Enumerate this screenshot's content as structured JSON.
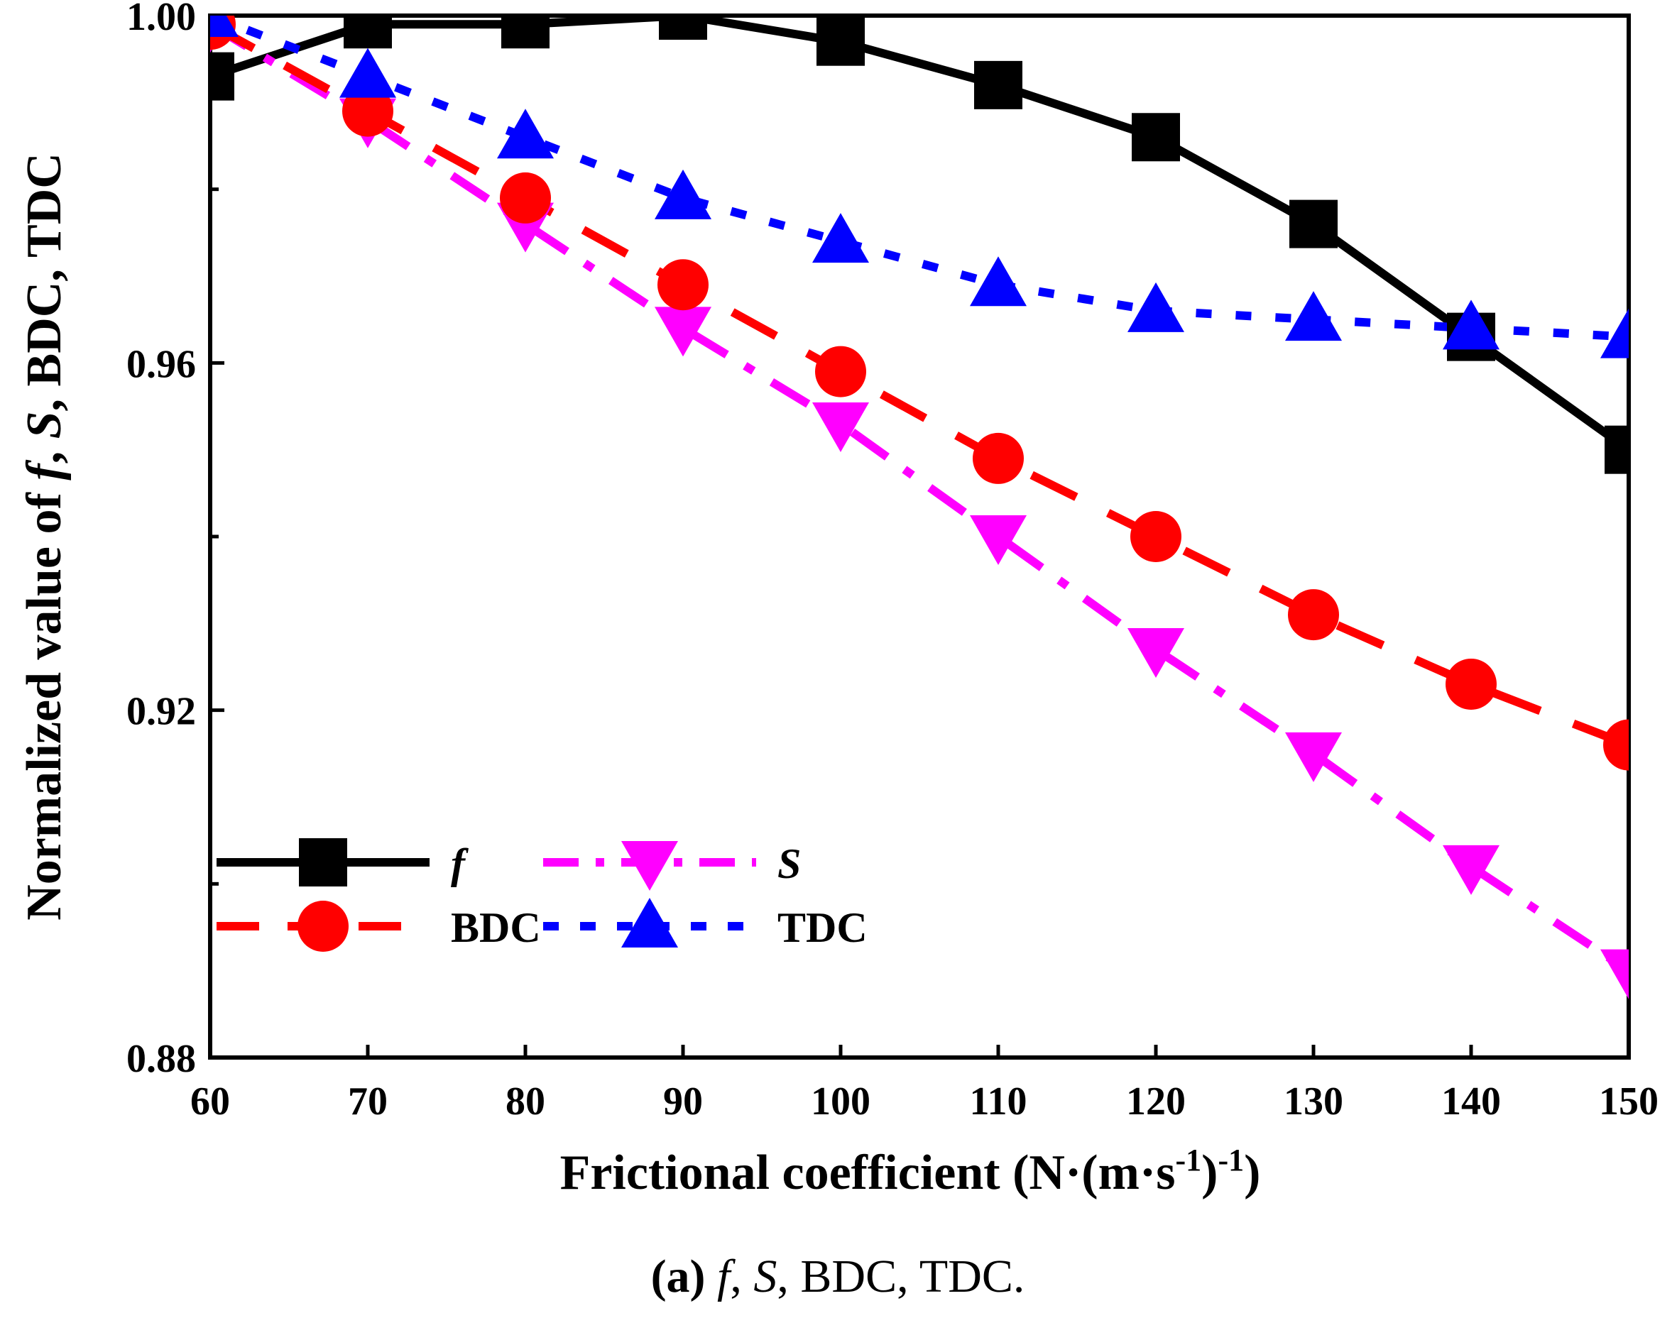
{
  "chart_data": {
    "type": "line",
    "title": "",
    "xlabel": "Frictional coefficient (N·(m·s⁻¹)⁻¹)",
    "xlabel_parts": {
      "main": "Frictional coefficient (N·(m·s",
      "sup1": "-1",
      "mid": ")",
      "sup2": "-1",
      "end": ")"
    },
    "ylabel": "Normalized value of f, S, BDC, TDC",
    "ylabel_parts": {
      "p1": "Normalized value of ",
      "f": "f",
      "c1": ", ",
      "s": "S",
      "rest": ", BDC, TDC"
    },
    "xlim": [
      60,
      150
    ],
    "ylim": [
      0.88,
      1.0
    ],
    "x_ticks": [
      60,
      70,
      80,
      90,
      100,
      110,
      120,
      130,
      140,
      150
    ],
    "x_tick_labels": [
      "60",
      "70",
      "80",
      "90",
      "100",
      "110",
      "120",
      "130",
      "140",
      "150"
    ],
    "y_ticks": [
      0.88,
      0.92,
      0.96,
      1.0
    ],
    "y_tick_labels": [
      "0.88",
      "0.92",
      "0.96",
      "1.00"
    ],
    "y_minor_ticks": [
      0.9,
      0.94,
      0.98
    ],
    "x": [
      60,
      70,
      80,
      90,
      100,
      110,
      120,
      130,
      140,
      150
    ],
    "series": [
      {
        "name": "f",
        "color": "#000000",
        "marker": "square",
        "line": "solid",
        "values": [
          0.993,
          0.999,
          0.999,
          1.0,
          0.997,
          0.992,
          0.986,
          0.976,
          0.963,
          0.95
        ]
      },
      {
        "name": "S",
        "color": "#ff00ff",
        "marker": "triangle-down",
        "line": "dashdot",
        "values": [
          0.999,
          0.988,
          0.976,
          0.964,
          0.953,
          0.94,
          0.927,
          0.915,
          0.902,
          0.89
        ]
      },
      {
        "name": "BDC",
        "color": "#ff0000",
        "marker": "circle",
        "line": "dash",
        "values": [
          0.999,
          0.989,
          0.979,
          0.969,
          0.959,
          0.949,
          0.94,
          0.931,
          0.923,
          0.916
        ]
      },
      {
        "name": "TDC",
        "color": "#0000ff",
        "marker": "triangle-up",
        "line": "dot",
        "values": [
          1.0,
          0.993,
          0.986,
          0.979,
          0.974,
          0.969,
          0.966,
          0.965,
          0.964,
          0.963
        ]
      }
    ],
    "legend_placement": "bottom-left",
    "caption": {
      "label": "(a)",
      "f": "f",
      "c1": ", ",
      "s": "S",
      "rest": ", BDC, TDC."
    }
  }
}
